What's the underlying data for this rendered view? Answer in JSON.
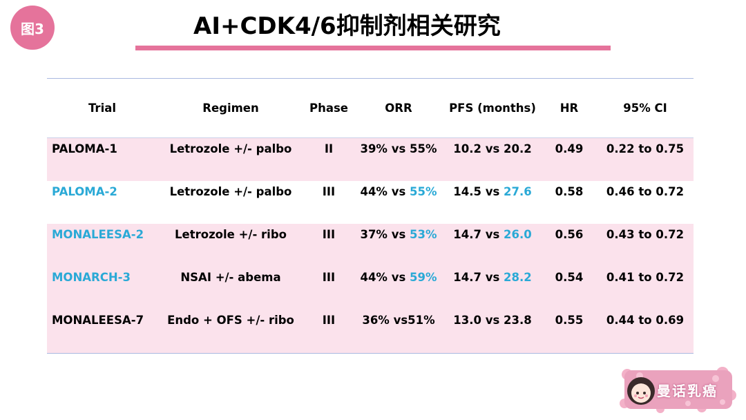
{
  "figure_badge": "图3",
  "title": "AI+CDK4/6抑制剂相关研究",
  "colors": {
    "accent_pink": "#e5739b",
    "row_pink": "#fbe2ec",
    "highlight_blue": "#2aa9d6",
    "rule_blue": "#a9b8e0"
  },
  "table": {
    "headers": [
      "Trial",
      "Regimen",
      "Phase",
      "ORR",
      "PFS (months)",
      "HR",
      "95% CI"
    ],
    "rows": [
      {
        "trial": "PALOMA-1",
        "regimen": "Letrozole +/- palbo",
        "phase": "II",
        "orr_a": "39% vs 55%",
        "orr_b": "",
        "pfs_a": "10.2 vs 20.2",
        "pfs_b": "",
        "hr": "0.49",
        "ci": "0.22 to 0.75"
      },
      {
        "trial": "PALOMA-2",
        "regimen": "Letrozole +/- palbo",
        "phase": "III",
        "orr_a": "44% vs ",
        "orr_b": "55%",
        "pfs_a": "14.5 vs ",
        "pfs_b": "27.6",
        "hr": "0.58",
        "ci": "0.46 to 0.72"
      },
      {
        "trial": "MONALEESA-2",
        "regimen": "Letrozole +/- ribo",
        "phase": "III",
        "orr_a": "37% vs ",
        "orr_b": "53%",
        "pfs_a": "14.7 vs ",
        "pfs_b": "26.0",
        "hr": "0.56",
        "ci": "0.43 to 0.72"
      },
      {
        "trial": "MONARCH-3",
        "regimen": "NSAI +/- abema",
        "phase": "III",
        "orr_a": "44% vs ",
        "orr_b": "59%",
        "pfs_a": "14.7 vs ",
        "pfs_b": "28.2",
        "hr": "0.54",
        "ci": "0.41 to 0.72"
      },
      {
        "trial": "MONALEESA-7",
        "regimen": "Endo + OFS +/- ribo",
        "phase": "III",
        "orr_a": "36% vs51%",
        "orr_b": "",
        "pfs_a": "13.0 vs 23.8",
        "pfs_b": "",
        "hr": "0.55",
        "ci": "0.44 to 0.69"
      }
    ]
  },
  "logo": {
    "icon": "cartoon-girl-avatar-icon",
    "text": "曼话乳癌"
  }
}
